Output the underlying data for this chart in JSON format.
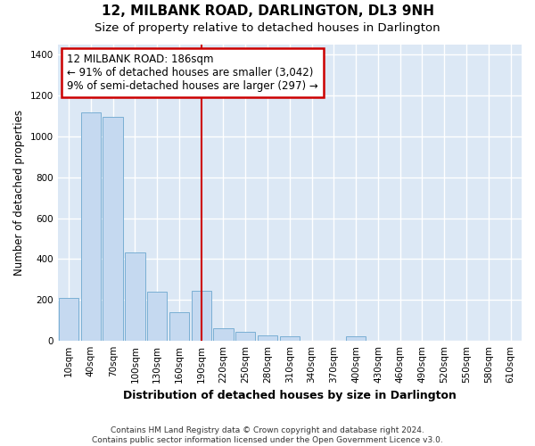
{
  "title": "12, MILBANK ROAD, DARLINGTON, DL3 9NH",
  "subtitle": "Size of property relative to detached houses in Darlington",
  "xlabel": "Distribution of detached houses by size in Darlington",
  "ylabel": "Number of detached properties",
  "bar_color": "#c5d9f0",
  "bar_edge_color": "#7aafd4",
  "background_color": "#dce8f5",
  "fig_background": "#ffffff",
  "grid_color": "#ffffff",
  "annotation_box_color": "#cc0000",
  "vline_color": "#cc0000",
  "bins": [
    "10sqm",
    "40sqm",
    "70sqm",
    "100sqm",
    "130sqm",
    "160sqm",
    "190sqm",
    "220sqm",
    "250sqm",
    "280sqm",
    "310sqm",
    "340sqm",
    "370sqm",
    "400sqm",
    "430sqm",
    "460sqm",
    "490sqm",
    "520sqm",
    "550sqm",
    "580sqm",
    "610sqm"
  ],
  "values": [
    210,
    1120,
    1095,
    430,
    240,
    140,
    245,
    60,
    45,
    25,
    20,
    0,
    0,
    20,
    0,
    0,
    0,
    0,
    0,
    0,
    0
  ],
  "vline_x_idx": 6,
  "annotation_text": "12 MILBANK ROAD: 186sqm\n← 91% of detached houses are smaller (3,042)\n9% of semi-detached houses are larger (297) →",
  "ylim": [
    0,
    1450
  ],
  "yticks": [
    0,
    200,
    400,
    600,
    800,
    1000,
    1200,
    1400
  ],
  "footer_text": "Contains HM Land Registry data © Crown copyright and database right 2024.\nContains public sector information licensed under the Open Government Licence v3.0.",
  "title_fontsize": 11,
  "subtitle_fontsize": 9.5,
  "xlabel_fontsize": 9,
  "ylabel_fontsize": 8.5,
  "tick_fontsize": 7.5,
  "annotation_fontsize": 8.5,
  "footer_fontsize": 6.5
}
